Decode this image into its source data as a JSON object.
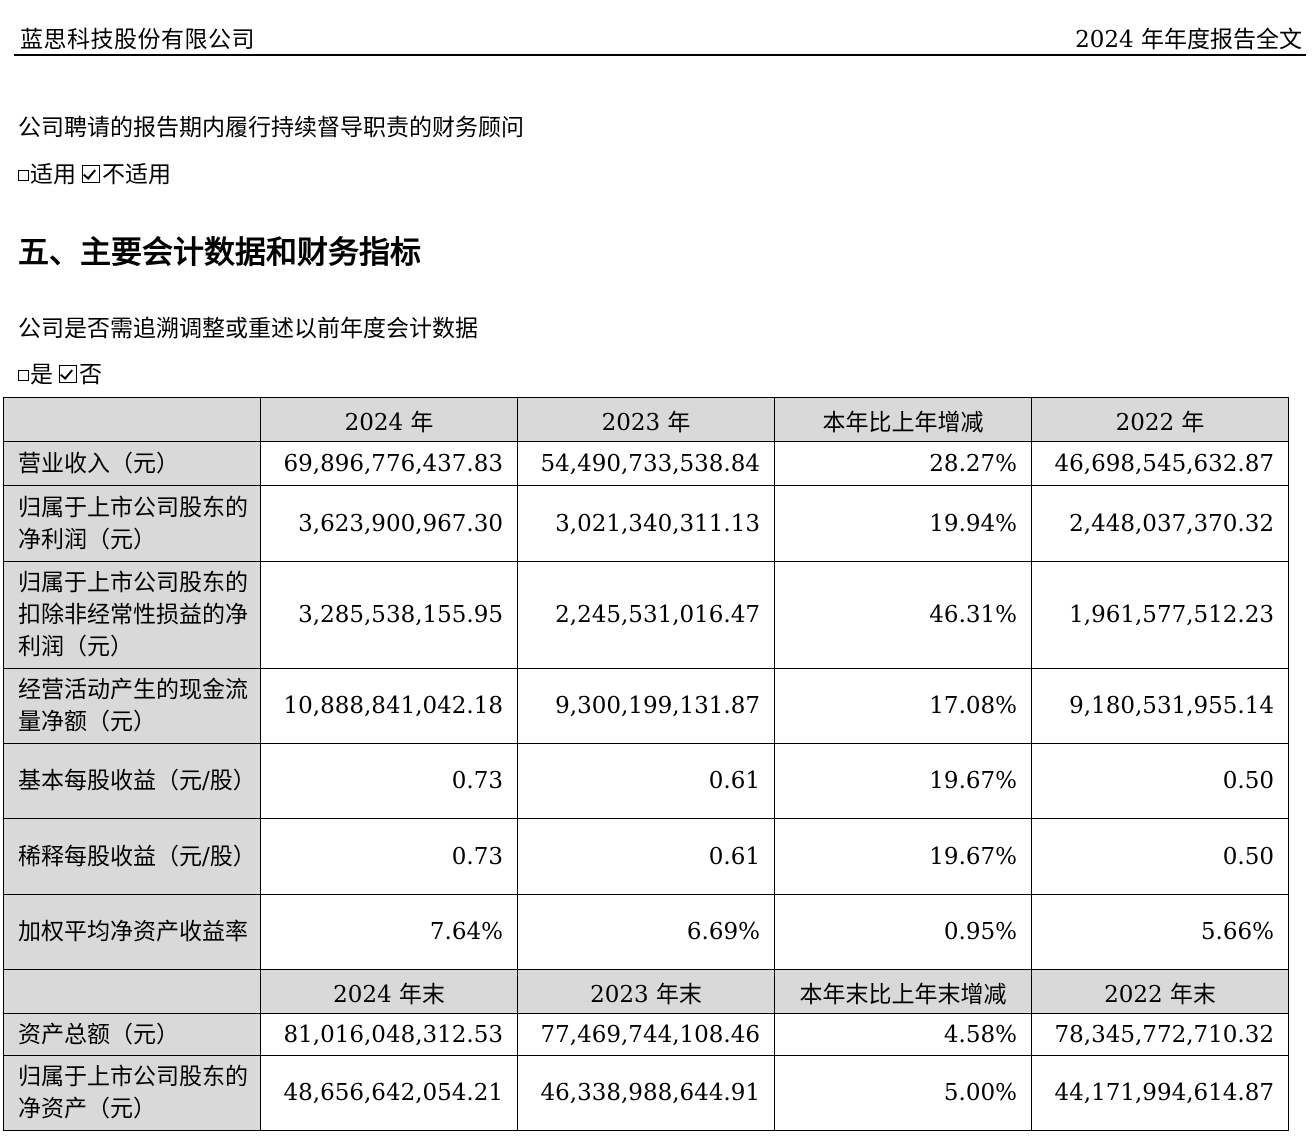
{
  "header": {
    "company": "蓝思科技股份有限公司",
    "report": "2024 年年度报告全文"
  },
  "advisor": {
    "question": "公司聘请的报告期内履行持续督导职责的财务顾问",
    "option_applicable": "适用",
    "option_not_applicable": "不适用"
  },
  "section_title": "五、主要会计数据和财务指标",
  "restatement": {
    "question": "公司是否需追溯调整或重述以前年度会计数据",
    "option_yes": "是",
    "option_no": "否"
  },
  "table": {
    "header1": [
      "",
      "2024 年",
      "2023 年",
      "本年比上年增减",
      "2022 年"
    ],
    "rows1": [
      {
        "label": "营业收入（元）",
        "values": [
          "69,896,776,437.83",
          "54,490,733,538.84",
          "28.27%",
          "46,698,545,632.87"
        ]
      },
      {
        "label": "归属于上市公司股东的净利润（元）",
        "values": [
          "3,623,900,967.30",
          "3,021,340,311.13",
          "19.94%",
          "2,448,037,370.32"
        ]
      },
      {
        "label": "归属于上市公司股东的扣除非经常性损益的净利润（元）",
        "values": [
          "3,285,538,155.95",
          "2,245,531,016.47",
          "46.31%",
          "1,961,577,512.23"
        ]
      },
      {
        "label": "经营活动产生的现金流量净额（元）",
        "values": [
          "10,888,841,042.18",
          "9,300,199,131.87",
          "17.08%",
          "9,180,531,955.14"
        ]
      },
      {
        "label": "基本每股收益（元/股）",
        "values": [
          "0.73",
          "0.61",
          "19.67%",
          "0.50"
        ]
      },
      {
        "label": "稀释每股收益（元/股）",
        "values": [
          "0.73",
          "0.61",
          "19.67%",
          "0.50"
        ]
      },
      {
        "label": "加权平均净资产收益率",
        "values": [
          "7.64%",
          "6.69%",
          "0.95%",
          "5.66%"
        ]
      }
    ],
    "header2": [
      "",
      "2024 年末",
      "2023 年末",
      "本年末比上年末增减",
      "2022 年末"
    ],
    "rows2": [
      {
        "label": "资产总额（元）",
        "values": [
          "81,016,048,312.53",
          "77,469,744,108.46",
          "4.58%",
          "78,345,772,710.32"
        ]
      },
      {
        "label": "归属于上市公司股东的净资产（元）",
        "values": [
          "48,656,642,054.21",
          "46,338,988,644.91",
          "5.00%",
          "44,171,994,614.87"
        ]
      }
    ]
  }
}
